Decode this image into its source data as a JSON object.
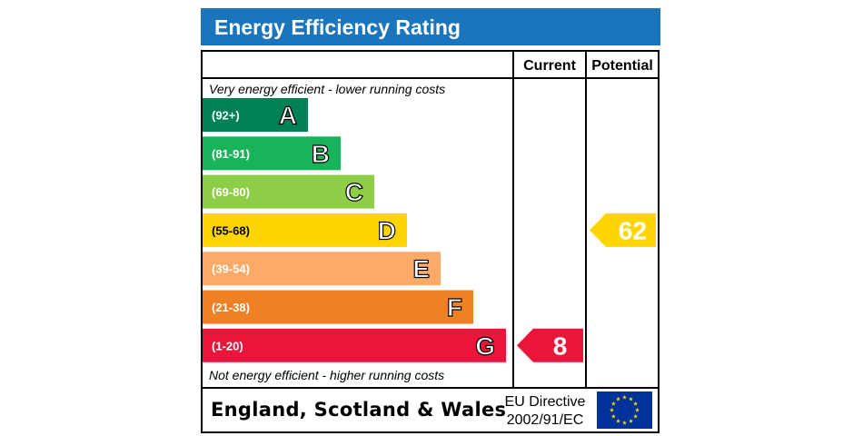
{
  "title": "Energy Efficiency Rating",
  "columns": {
    "current": "Current",
    "potential": "Potential"
  },
  "top_note": "Very energy efficient - lower running costs",
  "bottom_note": "Not energy efficient - higher running costs",
  "footer": {
    "region": "England, Scotland & Wales",
    "directive_line1": "EU Directive",
    "directive_line2": "2002/91/EC",
    "flag_icon": "eu-flag-icon"
  },
  "colors": {
    "header": "#1a75bc",
    "star": "#ffd700",
    "flag": "#003399"
  },
  "chart_data": {
    "type": "bar",
    "categories": [
      "A",
      "B",
      "C",
      "D",
      "E",
      "F",
      "G"
    ],
    "ranges": [
      "(92+)",
      "(81-91)",
      "(69-80)",
      "(55-68)",
      "(39-54)",
      "(21-38)",
      "(1-20)"
    ],
    "colors": [
      "#008054",
      "#19b459",
      "#8dce46",
      "#ffd500",
      "#fcaa65",
      "#ef8023",
      "#e9153b"
    ],
    "current": {
      "value": 8,
      "band": "G",
      "color": "#e9153b"
    },
    "potential": {
      "value": 62,
      "band": "D",
      "color": "#ffd500"
    }
  }
}
